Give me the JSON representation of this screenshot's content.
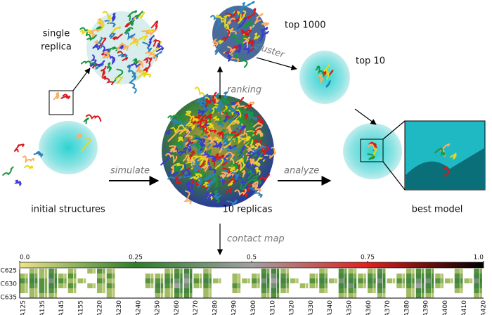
{
  "panels": {
    "single_replica": [
      "single",
      "replica"
    ],
    "top_1000": "top 1000",
    "cluster": "cluster",
    "top_10": "top 10",
    "ranking": "ranking",
    "simulate": "simulate",
    "analyze": "analyze",
    "initial_structures": "initial structures",
    "replicas": "10 replicas",
    "best_model": "best model",
    "contact_map": "contact map"
  },
  "colorbar": {
    "ticks": [
      {
        "value": 0,
        "label": "0.0"
      },
      0.25,
      0.5,
      0.75,
      {
        "value": 1,
        "label": "1.0"
      }
    ],
    "colors": [
      "#ece48a",
      "#2f7d2a",
      "#a0a0a0",
      "#e02020",
      "#000000"
    ]
  },
  "contact_map": {
    "row_labels": [
      "C625",
      "C630",
      "C635"
    ],
    "column_labels": [
      "A125",
      "A135",
      "A145",
      "A155",
      "A220",
      "A230",
      "A240",
      "A250",
      "A260",
      "A270",
      "A280",
      "A290",
      "A300",
      "A310",
      "A320",
      "A330",
      "A340",
      "A350",
      "A360",
      "A370",
      "A380",
      "A390",
      "A400",
      "A410",
      "A420"
    ],
    "cells": [
      [
        0,
        0.1,
        0.1,
        0.2,
        0,
        0.1,
        0,
        0.1,
        0.2,
        0.1,
        0,
        0,
        0,
        0,
        0,
        0.1,
        0.2,
        0.3,
        0,
        0.1,
        0,
        0,
        0,
        0,
        0,
        0.2,
        0.3,
        0.1,
        0,
        0,
        0,
        0.1,
        0,
        0.2,
        0.1,
        0,
        0.1,
        0.2,
        0,
        0,
        0.1,
        0.2,
        0.2,
        0,
        0,
        0.1,
        0,
        0.2
      ],
      [
        0.1,
        0.2,
        0.1,
        0.3,
        0.1,
        0.2,
        0,
        0,
        0.1,
        0.2,
        0,
        0,
        0,
        0.1,
        0.1,
        0.2,
        0.3,
        0.4,
        0.1,
        0.2,
        0,
        0,
        0.1,
        0,
        0.1,
        0.3,
        0.4,
        0.2,
        0,
        0,
        0.1,
        0.2,
        0,
        0.3,
        0.2,
        0.1,
        0.2,
        0.3,
        0,
        0.1,
        0.2,
        0.3,
        0.3,
        0.1,
        0,
        0.2,
        0,
        0.3
      ],
      [
        0.2,
        0.3,
        0.2,
        0.4,
        0.2,
        0.1,
        0.1,
        0,
        0.2,
        0.1,
        0,
        0,
        0,
        0.2,
        0.2,
        0.3,
        0.4,
        0.5,
        0.2,
        0.3,
        0.1,
        0,
        0.1,
        0.1,
        0.2,
        0.4,
        0.5,
        0.3,
        0.1,
        0,
        0.2,
        0.3,
        0.1,
        0.4,
        0.3,
        0.2,
        0.3,
        0.4,
        0.1,
        0.2,
        0.3,
        0.4,
        0.4,
        0.2,
        0.1,
        0.3,
        0.1,
        0.4
      ],
      [
        0.1,
        0.2,
        0.2,
        0.3,
        0.1,
        0.2,
        0,
        0.1,
        0.1,
        0.2,
        0,
        0,
        0,
        0.1,
        0.3,
        0.2,
        0.5,
        0.4,
        0.1,
        0.2,
        0,
        0,
        0.2,
        0,
        0.1,
        0.3,
        0.4,
        0.2,
        0,
        0.1,
        0.1,
        0.2,
        0,
        0.3,
        0.4,
        0.1,
        0.2,
        0.3,
        0,
        0.1,
        0.2,
        0.5,
        0.3,
        0.1,
        0,
        0.2,
        0,
        0.3
      ],
      [
        0.1,
        0.1,
        0.2,
        0.2,
        0,
        0.1,
        0,
        0,
        0.1,
        0.1,
        0,
        0,
        0,
        0,
        0.2,
        0.1,
        0.3,
        0.3,
        0,
        0.1,
        0,
        0,
        0.1,
        0,
        0,
        0.2,
        0.3,
        0.1,
        0,
        0,
        0,
        0.1,
        0,
        0.2,
        0.2,
        0,
        0.1,
        0.2,
        0,
        0,
        0.1,
        0.3,
        0.2,
        0,
        0,
        0.1,
        0,
        0.2
      ],
      [
        0,
        0.1,
        0.1,
        0.1,
        0,
        0,
        0,
        0,
        0,
        0.1,
        0,
        0,
        0,
        0,
        0.1,
        0.1,
        0.2,
        0.2,
        0,
        0.1,
        0,
        0,
        0,
        0,
        0,
        0.1,
        0.2,
        0,
        0,
        0,
        0,
        0,
        0,
        0.1,
        0.1,
        0,
        0,
        0.1,
        0,
        0,
        0.1,
        0.2,
        0.1,
        0,
        0,
        0,
        0,
        0.1
      ]
    ]
  }
}
